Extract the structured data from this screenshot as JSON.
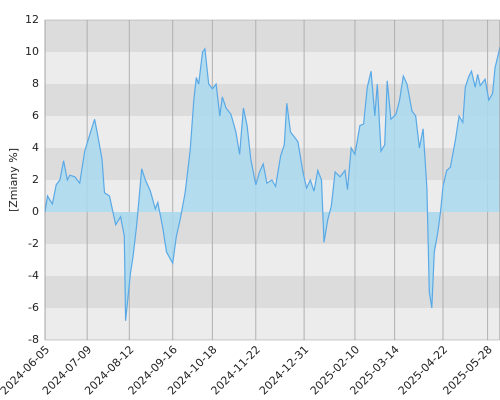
{
  "chart_data": {
    "type": "area",
    "y_label": "[Zmiany %]",
    "ylim": [
      -8,
      12
    ],
    "yticks": [
      -8,
      -6,
      -4,
      -2,
      0,
      2,
      4,
      6,
      8,
      10,
      12
    ],
    "xlim": [
      "2024-06-05",
      "2025-06-07"
    ],
    "xticks": [
      "2024-06-05",
      "2024-07-09",
      "2024-08-12",
      "2024-09-16",
      "2024-10-18",
      "2024-11-22",
      "2024-12-31",
      "2025-02-10",
      "2025-03-14",
      "2025-04-22",
      "2025-05-28"
    ],
    "grid": true,
    "color": "#5aa9e6",
    "x": [
      "2024-06-05",
      "2024-06-07",
      "2024-06-11",
      "2024-06-14",
      "2024-06-17",
      "2024-06-20",
      "2024-06-23",
      "2024-06-25",
      "2024-06-29",
      "2024-07-03",
      "2024-07-07",
      "2024-07-11",
      "2024-07-15",
      "2024-07-17",
      "2024-07-21",
      "2024-07-23",
      "2024-07-27",
      "2024-08-01",
      "2024-08-05",
      "2024-08-08",
      "2024-08-09",
      "2024-08-13",
      "2024-08-15",
      "2024-08-18",
      "2024-08-22",
      "2024-08-25",
      "2024-08-29",
      "2024-09-02",
      "2024-09-04",
      "2024-09-08",
      "2024-09-11",
      "2024-09-16",
      "2024-09-19",
      "2024-09-22",
      "2024-09-26",
      "2024-09-30",
      "2024-10-03",
      "2024-10-05",
      "2024-10-07",
      "2024-10-10",
      "2024-10-12",
      "2024-10-15",
      "2024-10-18",
      "2024-10-21",
      "2024-10-24",
      "2024-10-26",
      "2024-10-29",
      "2024-11-02",
      "2024-11-06",
      "2024-11-09",
      "2024-11-12",
      "2024-11-15",
      "2024-11-18",
      "2024-11-22",
      "2024-11-25",
      "2024-11-28",
      "2024-12-01",
      "2024-12-05",
      "2024-12-08",
      "2024-12-12",
      "2024-12-15",
      "2024-12-17",
      "2024-12-20",
      "2024-12-23",
      "2024-12-26",
      "2024-12-30",
      "2025-01-02",
      "2025-01-05",
      "2025-01-08",
      "2025-01-11",
      "2025-01-14",
      "2025-01-16",
      "2025-01-19",
      "2025-01-22",
      "2025-01-25",
      "2025-01-29",
      "2025-02-02",
      "2025-02-04",
      "2025-02-07",
      "2025-02-10",
      "2025-02-14",
      "2025-02-17",
      "2025-02-20",
      "2025-02-23",
      "2025-02-26",
      "2025-02-28",
      "2025-03-03",
      "2025-03-06",
      "2025-03-08",
      "2025-03-11",
      "2025-03-15",
      "2025-03-18",
      "2025-03-21",
      "2025-03-24",
      "2025-03-28",
      "2025-03-31",
      "2025-04-03",
      "2025-04-06",
      "2025-04-09",
      "2025-04-11",
      "2025-04-13",
      "2025-04-15",
      "2025-04-18",
      "2025-04-20",
      "2025-04-22",
      "2025-04-25",
      "2025-04-28",
      "2025-05-02",
      "2025-05-05",
      "2025-05-08",
      "2025-05-10",
      "2025-05-13",
      "2025-05-15",
      "2025-05-18",
      "2025-05-20",
      "2025-05-22",
      "2025-05-26",
      "2025-05-29",
      "2025-06-01",
      "2025-06-03",
      "2025-06-07"
    ],
    "values": [
      0,
      1.0,
      0.5,
      1.7,
      2.0,
      3.2,
      2.0,
      2.3,
      2.2,
      1.8,
      3.8,
      4.8,
      5.8,
      5.0,
      3.3,
      1.2,
      1.0,
      -0.8,
      -0.3,
      -1.5,
      -6.8,
      -3.8,
      -2.8,
      -0.8,
      2.7,
      2.0,
      1.3,
      0.2,
      0.6,
      -1.0,
      -2.5,
      -3.2,
      -1.5,
      -0.5,
      1.2,
      3.8,
      7.0,
      8.4,
      8.0,
      10.0,
      10.2,
      8.0,
      7.7,
      8.0,
      6.0,
      7.2,
      6.5,
      6.1,
      5.0,
      3.6,
      6.5,
      5.4,
      3.3,
      1.7,
      2.5,
      3.0,
      1.8,
      2.0,
      1.6,
      3.5,
      4.2,
      6.8,
      5.0,
      4.7,
      4.4,
      2.5,
      1.5,
      2.0,
      1.3,
      2.6,
      2.0,
      -1.9,
      -0.5,
      0.4,
      2.5,
      2.2,
      2.6,
      1.4,
      4.0,
      3.6,
      5.4,
      5.5,
      7.8,
      8.8,
      6.0,
      8.0,
      3.8,
      4.2,
      8.2,
      5.8,
      6.1,
      7.0,
      8.5,
      8.0,
      6.3,
      6.0,
      4.0,
      5.2,
      1.5,
      -5.0,
      -6.0,
      -2.5,
      -1.2,
      0.0,
      1.6,
      2.6,
      2.8,
      4.5,
      6.0,
      5.6,
      7.8,
      8.5,
      8.8,
      7.8,
      8.6,
      7.9,
      8.3,
      7.0,
      7.4,
      9.0,
      10.3
    ]
  }
}
